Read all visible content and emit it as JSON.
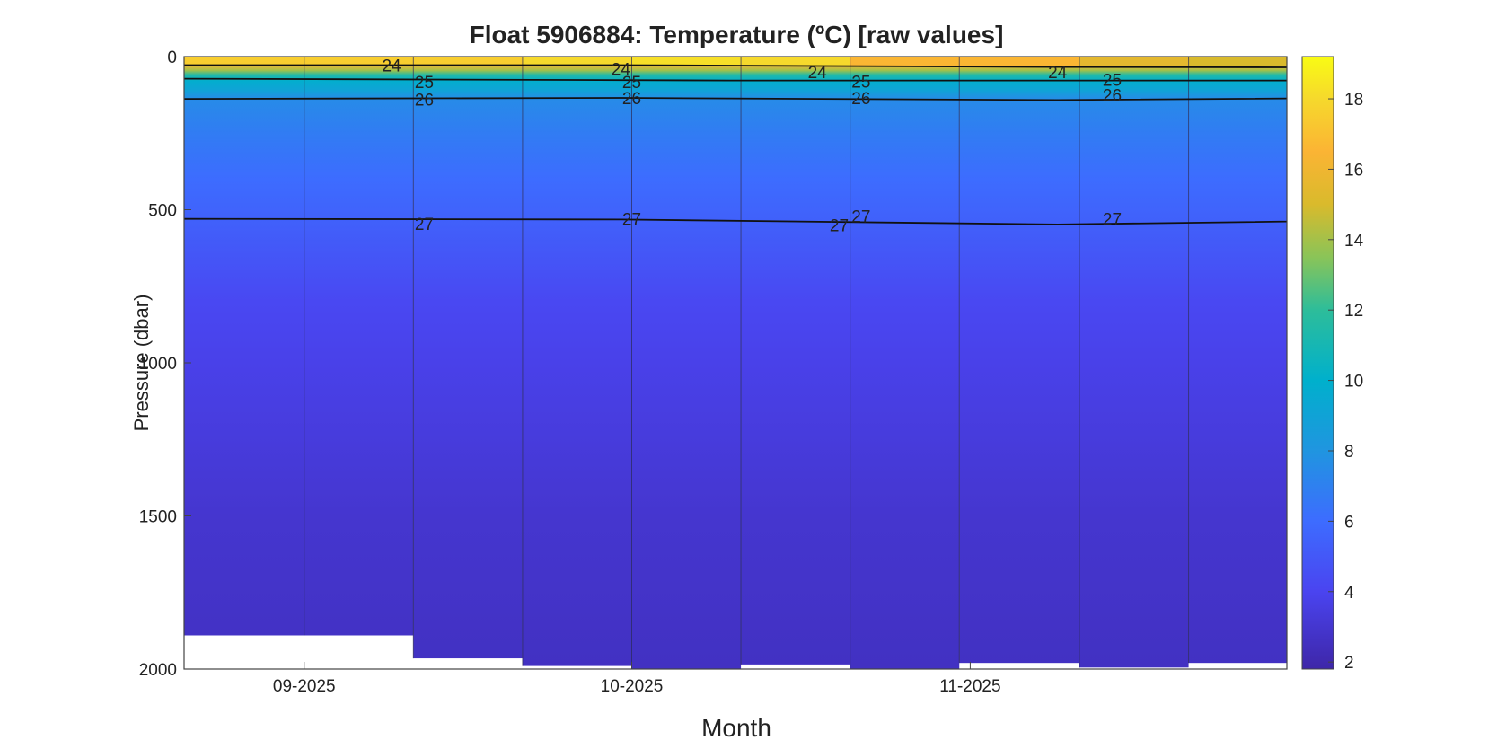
{
  "chart_data": {
    "type": "heatmap",
    "title": "Float  5906884:  Temperature  (ºC)  [raw  values]",
    "xlabel": "Month",
    "ylabel": "Pressure (dbar)",
    "x_range": [
      "2025-08-21",
      "2025-11-30"
    ],
    "ylim": [
      2000,
      0
    ],
    "y_ticks": [
      "0",
      "500",
      "1000",
      "1500",
      "2000"
    ],
    "x_ticks": [
      {
        "date": "2025-09-01",
        "label": "09-2025"
      },
      {
        "date": "2025-10-01",
        "label": "10-2025"
      },
      {
        "date": "2025-11-01",
        "label": "11-2025"
      }
    ],
    "profiles": [
      {
        "date": "2025-09-01",
        "max_pressure": 1890
      },
      {
        "date": "2025-09-11",
        "max_pressure": 1965
      },
      {
        "date": "2025-09-21",
        "max_pressure": 1990
      },
      {
        "date": "2025-10-01",
        "max_pressure": 2000
      },
      {
        "date": "2025-10-11",
        "max_pressure": 1985
      },
      {
        "date": "2025-10-21",
        "max_pressure": 2000
      },
      {
        "date": "2025-10-31",
        "max_pressure": 1980
      },
      {
        "date": "2025-11-11",
        "max_pressure": 1995
      },
      {
        "date": "2025-11-21",
        "max_pressure": 1980
      },
      {
        "date": "2025-11-30",
        "max_pressure": 1985
      }
    ],
    "surface_temperature": [
      17.5,
      17.5,
      18.0,
      18.2,
      18.0,
      16.6,
      16.6,
      15.5,
      15.0,
      15.0
    ],
    "temperature_profile": [
      {
        "pressure": 0,
        "value": 17.5
      },
      {
        "pressure": 25,
        "value": 16.5
      },
      {
        "pressure": 45,
        "value": 14.0
      },
      {
        "pressure": 60,
        "value": 11.5
      },
      {
        "pressure": 80,
        "value": 9.8
      },
      {
        "pressure": 110,
        "value": 9.0
      },
      {
        "pressure": 140,
        "value": 7.5
      },
      {
        "pressure": 250,
        "value": 6.8
      },
      {
        "pressure": 400,
        "value": 6.0
      },
      {
        "pressure": 520,
        "value": 5.5
      },
      {
        "pressure": 800,
        "value": 4.2
      },
      {
        "pressure": 1000,
        "value": 3.8
      },
      {
        "pressure": 1500,
        "value": 3.0
      },
      {
        "pressure": 2000,
        "value": 2.6
      }
    ],
    "contours": [
      {
        "label": "24",
        "points": [
          [
            0,
            28
          ],
          [
            40,
            28
          ],
          [
            80,
            34
          ],
          [
            180,
            40
          ],
          [
            210,
            43
          ],
          [
            270,
            47
          ],
          [
            285,
            47
          ],
          [
            290,
            40
          ],
          [
            290,
            0
          ]
        ]
      },
      {
        "label": "25",
        "points": [
          [
            0,
            72
          ],
          [
            50,
            78
          ],
          [
            120,
            78
          ],
          [
            180,
            76
          ],
          [
            200,
            72
          ],
          [
            270,
            70
          ],
          [
            300,
            64
          ]
        ]
      },
      {
        "label": "26",
        "points": [
          [
            0,
            138
          ],
          [
            40,
            135
          ],
          [
            80,
            142
          ],
          [
            120,
            132
          ],
          [
            180,
            140
          ],
          [
            200,
            132
          ],
          [
            280,
            122
          ],
          [
            300,
            112
          ]
        ]
      },
      {
        "label": "27",
        "points": [
          [
            0,
            530
          ],
          [
            40,
            532
          ],
          [
            80,
            548
          ],
          [
            120,
            530
          ],
          [
            170,
            535
          ],
          [
            210,
            523
          ],
          [
            260,
            530
          ],
          [
            300,
            525
          ]
        ]
      },
      {
        "label": "27",
        "points": [
          [
            195,
            548
          ],
          [
            222,
            548
          ]
        ]
      }
    ],
    "contour_labels": [
      {
        "text": "24",
        "date": "2025-09-09",
        "pressure": 28
      },
      {
        "text": "25",
        "date": "2025-09-12",
        "pressure": 82
      },
      {
        "text": "26",
        "date": "2025-09-12",
        "pressure": 140
      },
      {
        "text": "27",
        "date": "2025-09-12",
        "pressure": 545
      },
      {
        "text": "24",
        "date": "2025-09-30",
        "pressure": 40
      },
      {
        "text": "25",
        "date": "2025-10-01",
        "pressure": 82
      },
      {
        "text": "26",
        "date": "2025-10-01",
        "pressure": 135
      },
      {
        "text": "27",
        "date": "2025-10-01",
        "pressure": 530
      },
      {
        "text": "24",
        "date": "2025-10-18",
        "pressure": 50
      },
      {
        "text": "27",
        "date": "2025-10-20",
        "pressure": 550
      },
      {
        "text": "25",
        "date": "2025-10-22",
        "pressure": 80
      },
      {
        "text": "26",
        "date": "2025-10-22",
        "pressure": 135
      },
      {
        "text": "27",
        "date": "2025-10-22",
        "pressure": 520
      },
      {
        "text": "24",
        "date": "2025-11-09",
        "pressure": 50
      },
      {
        "text": "25",
        "date": "2025-11-14",
        "pressure": 75
      },
      {
        "text": "26",
        "date": "2025-11-14",
        "pressure": 125
      },
      {
        "text": "27",
        "date": "2025-11-14",
        "pressure": 530
      }
    ],
    "colorbar": {
      "range": [
        1.8,
        19.2
      ],
      "ticks": [
        "2",
        "4",
        "6",
        "8",
        "10",
        "12",
        "14",
        "16",
        "18"
      ],
      "colormap": [
        {
          "value": 1.8,
          "color": "#3e26a8"
        },
        {
          "value": 4.0,
          "color": "#4a44f0"
        },
        {
          "value": 6.0,
          "color": "#3d6cff"
        },
        {
          "value": 8.0,
          "color": "#2095e0"
        },
        {
          "value": 10.0,
          "color": "#00b0cc"
        },
        {
          "value": 12.0,
          "color": "#2dbd9a"
        },
        {
          "value": 13.5,
          "color": "#8ac458"
        },
        {
          "value": 15.0,
          "color": "#d9ba2c"
        },
        {
          "value": 16.5,
          "color": "#fbb434"
        },
        {
          "value": 18.0,
          "color": "#f6d92c"
        },
        {
          "value": 19.2,
          "color": "#f9fb14"
        }
      ]
    }
  }
}
